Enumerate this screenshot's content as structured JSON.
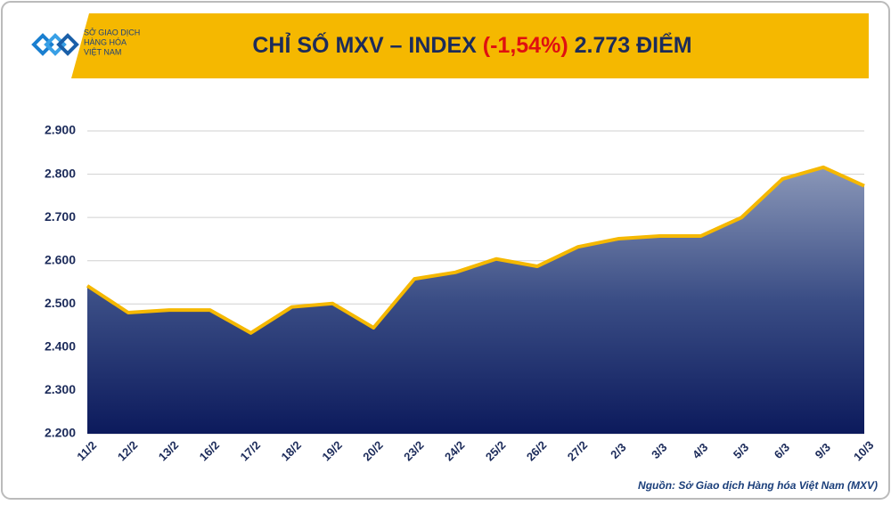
{
  "chart_data": {
    "type": "area",
    "title": "CHỈ SỐ MXV – INDEX",
    "title_change": "(-1,54%)",
    "title_value": "2.773 ĐIỂM",
    "logo": [
      "SỞ GIAO DỊCH",
      "HÀNG HÓA",
      "VIỆT NAM"
    ],
    "source": "Nguồn: Sở Giao dịch Hàng hóa Việt Nam (MXV)",
    "categories": [
      "11/2",
      "12/2",
      "13/2",
      "16/2",
      "17/2",
      "18/2",
      "19/2",
      "20/2",
      "23/2",
      "24/2",
      "25/2",
      "26/2",
      "27/2",
      "2/3",
      "3/3",
      "4/3",
      "5/3",
      "6/3",
      "9/3",
      "10/3"
    ],
    "values": [
      2542,
      2480,
      2486,
      2486,
      2433,
      2493,
      2501,
      2445,
      2558,
      2573,
      2604,
      2587,
      2632,
      2651,
      2657,
      2657,
      2700,
      2789,
      2816,
      2773
    ],
    "color": "#f5b800",
    "ylim": [
      2200,
      2900
    ],
    "yticks": [
      {
        "value": 2200,
        "label": "2.200"
      },
      {
        "value": 2300,
        "label": "2.300"
      },
      {
        "value": 2400,
        "label": "2.400"
      },
      {
        "value": 2500,
        "label": "2.500"
      },
      {
        "value": 2600,
        "label": "2.600"
      },
      {
        "value": 2700,
        "label": "2.700"
      },
      {
        "value": 2800,
        "label": "2.800"
      },
      {
        "value": 2900,
        "label": "2.900"
      }
    ],
    "grid": true
  }
}
